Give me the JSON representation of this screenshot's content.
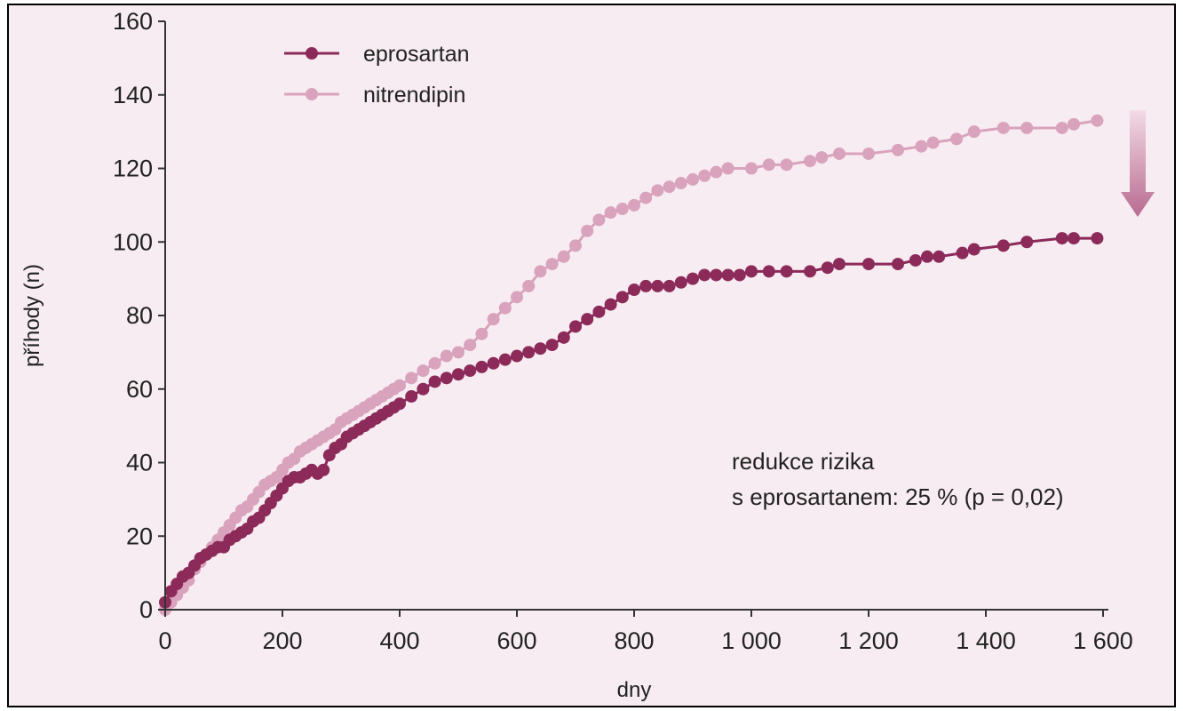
{
  "chart_data": {
    "type": "line",
    "title": "",
    "xlabel": "dny",
    "ylabel": "příhody (n)",
    "xlim": [
      0,
      1600
    ],
    "ylim": [
      0,
      160
    ],
    "x_ticks": [
      0,
      200,
      400,
      600,
      800,
      1000,
      1200,
      1400,
      1600
    ],
    "x_tick_labels": [
      "0",
      "200",
      "400",
      "600",
      "800",
      "1 000",
      "1 200",
      "1 400",
      "1 600"
    ],
    "y_ticks": [
      0,
      20,
      40,
      60,
      80,
      100,
      120,
      140,
      160
    ],
    "y_tick_labels": [
      "0",
      "20",
      "40",
      "60",
      "80",
      "100",
      "120",
      "140",
      "160"
    ],
    "grid": false,
    "legend_position": "top-left",
    "annotation": [
      "redukce rizika",
      "s eprosartanem: 25 % (p = 0,02)"
    ],
    "colors": {
      "eprosartan": "#8c2a5a",
      "nitrendipin": "#d9a3bd",
      "arrow": "#b86a90",
      "background": "#f7ecf1"
    },
    "series": [
      {
        "name": "eprosartan",
        "x": [
          0,
          10,
          20,
          30,
          40,
          50,
          60,
          70,
          80,
          90,
          100,
          110,
          120,
          130,
          140,
          150,
          160,
          170,
          180,
          190,
          200,
          210,
          220,
          230,
          240,
          250,
          260,
          270,
          280,
          290,
          300,
          310,
          320,
          330,
          340,
          350,
          360,
          370,
          380,
          390,
          400,
          420,
          440,
          460,
          480,
          500,
          520,
          540,
          560,
          580,
          600,
          620,
          640,
          660,
          680,
          700,
          720,
          740,
          760,
          780,
          800,
          820,
          840,
          860,
          880,
          900,
          920,
          940,
          960,
          980,
          1000,
          1030,
          1060,
          1100,
          1130,
          1150,
          1200,
          1250,
          1280,
          1300,
          1320,
          1360,
          1380,
          1430,
          1470,
          1530,
          1550,
          1590
        ],
        "y": [
          2,
          5,
          7,
          9,
          10,
          12,
          14,
          15,
          16,
          17,
          17,
          19,
          20,
          21,
          22,
          24,
          25,
          27,
          29,
          31,
          33,
          35,
          36,
          36,
          37,
          38,
          37,
          38,
          42,
          44,
          45,
          47,
          48,
          49,
          50,
          51,
          52,
          53,
          54,
          55,
          56,
          58,
          60,
          62,
          63,
          64,
          65,
          66,
          67,
          68,
          69,
          70,
          71,
          72,
          74,
          77,
          79,
          81,
          83,
          85,
          87,
          88,
          88,
          88,
          89,
          90,
          91,
          91,
          91,
          91,
          92,
          92,
          92,
          92,
          93,
          94,
          94,
          94,
          95,
          96,
          96,
          97,
          98,
          99,
          100,
          101,
          101,
          101
        ]
      },
      {
        "name": "nitrendipin",
        "x": [
          0,
          10,
          20,
          30,
          40,
          50,
          60,
          70,
          80,
          90,
          100,
          110,
          120,
          130,
          140,
          150,
          160,
          170,
          180,
          190,
          200,
          210,
          220,
          230,
          240,
          250,
          260,
          270,
          280,
          290,
          300,
          310,
          320,
          330,
          340,
          350,
          360,
          370,
          380,
          390,
          400,
          420,
          440,
          460,
          480,
          500,
          520,
          540,
          560,
          580,
          600,
          620,
          640,
          660,
          680,
          700,
          720,
          740,
          760,
          780,
          800,
          820,
          840,
          860,
          880,
          900,
          920,
          940,
          960,
          1000,
          1030,
          1060,
          1100,
          1120,
          1150,
          1200,
          1250,
          1290,
          1310,
          1350,
          1380,
          1430,
          1470,
          1530,
          1550,
          1590
        ],
        "y": [
          0,
          2,
          4,
          6,
          8,
          11,
          13,
          15,
          17,
          19,
          21,
          23,
          25,
          27,
          28,
          30,
          32,
          34,
          35,
          36,
          38,
          40,
          41,
          43,
          44,
          45,
          46,
          47,
          48,
          49,
          51,
          52,
          53,
          54,
          55,
          56,
          57,
          58,
          59,
          60,
          61,
          63,
          65,
          67,
          69,
          70,
          72,
          75,
          79,
          82,
          85,
          88,
          92,
          94,
          96,
          99,
          103,
          106,
          108,
          109,
          110,
          112,
          114,
          115,
          116,
          117,
          118,
          119,
          120,
          120,
          121,
          121,
          122,
          123,
          124,
          124,
          125,
          126,
          127,
          128,
          130,
          131,
          131,
          131,
          132,
          133
        ]
      }
    ]
  }
}
